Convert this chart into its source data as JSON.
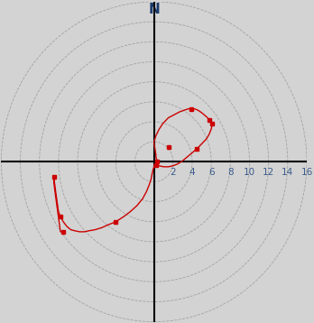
{
  "title": "N",
  "background_color": "#d3d3d3",
  "plot_bg_color": "#d3d3d3",
  "axis_color": "#000000",
  "grid_color": "#888888",
  "line_color": "#cc0000",
  "xlim": [
    -16,
    16
  ],
  "ylim": [
    -16,
    16
  ],
  "xtick_labels": [
    "2",
    "4",
    "6",
    "8",
    "10",
    "12",
    "14",
    "16"
  ],
  "xtick_vals": [
    2,
    4,
    6,
    8,
    10,
    12,
    14,
    16
  ],
  "circle_radii": [
    2,
    4,
    6,
    8,
    10,
    12,
    14,
    16
  ],
  "path_x": [
    0.3,
    0.3,
    0.3,
    0.25,
    0.2,
    0.2,
    0.15,
    0.1,
    0.05,
    0.0,
    0.1,
    0.2,
    0.35,
    0.5,
    0.7,
    0.9,
    1.1,
    1.3,
    1.5,
    1.7,
    1.9,
    2.1,
    2.3,
    2.5,
    2.7,
    3.0,
    3.3,
    3.6,
    3.9,
    4.2,
    4.5,
    4.7,
    5.0,
    5.5,
    5.8,
    6.1,
    6.0,
    5.8,
    5.5,
    5.0,
    4.5,
    4.0,
    3.5,
    3.0,
    2.5,
    2.0,
    1.5,
    1.0,
    0.5,
    0.2,
    0.1,
    0.05,
    0.0,
    -0.1,
    -0.2,
    -0.3,
    -0.5,
    -0.8,
    -1.2,
    -1.8,
    -2.5,
    -3.2,
    -4.0,
    -4.8,
    -5.5,
    -6.2,
    -6.8,
    -7.3,
    -7.8,
    -8.3,
    -8.7,
    -9.1,
    -9.5,
    -9.8,
    -10.0,
    -10.3,
    -10.5,
    -10.5,
    -10.3,
    -9.8,
    -9.5,
    -9.5
  ],
  "path_y": [
    0.0,
    0.1,
    0.2,
    0.3,
    0.5,
    0.7,
    1.0,
    1.3,
    1.6,
    2.0,
    2.3,
    2.6,
    2.9,
    3.2,
    3.5,
    3.8,
    4.0,
    4.2,
    4.4,
    4.5,
    4.6,
    4.7,
    4.8,
    4.9,
    5.0,
    5.1,
    5.2,
    5.3,
    5.3,
    5.3,
    5.2,
    5.1,
    4.9,
    4.5,
    4.2,
    3.8,
    3.3,
    2.8,
    2.3,
    1.8,
    1.3,
    0.9,
    0.5,
    0.1,
    -0.2,
    -0.4,
    -0.5,
    -0.5,
    -0.4,
    -0.3,
    -0.2,
    -0.3,
    -0.5,
    -0.8,
    -1.2,
    -1.7,
    -2.3,
    -3.0,
    -3.7,
    -4.4,
    -5.0,
    -5.5,
    -6.0,
    -6.3,
    -6.6,
    -6.8,
    -6.9,
    -7.0,
    -7.0,
    -6.9,
    -6.8,
    -6.5,
    -6.0,
    -5.5,
    -5.0,
    -3.0,
    -1.5,
    -2.0,
    -3.5,
    -7.0,
    -7.0,
    -7.0
  ],
  "marker_x": [
    0.3,
    1.5,
    3.9,
    5.8,
    6.1,
    4.5,
    0.2,
    -4.0,
    -9.8,
    -10.5,
    -9.5
  ],
  "marker_y": [
    0.0,
    1.5,
    5.3,
    4.2,
    3.8,
    1.3,
    -0.3,
    -6.0,
    -5.5,
    -1.5,
    -7.0
  ]
}
